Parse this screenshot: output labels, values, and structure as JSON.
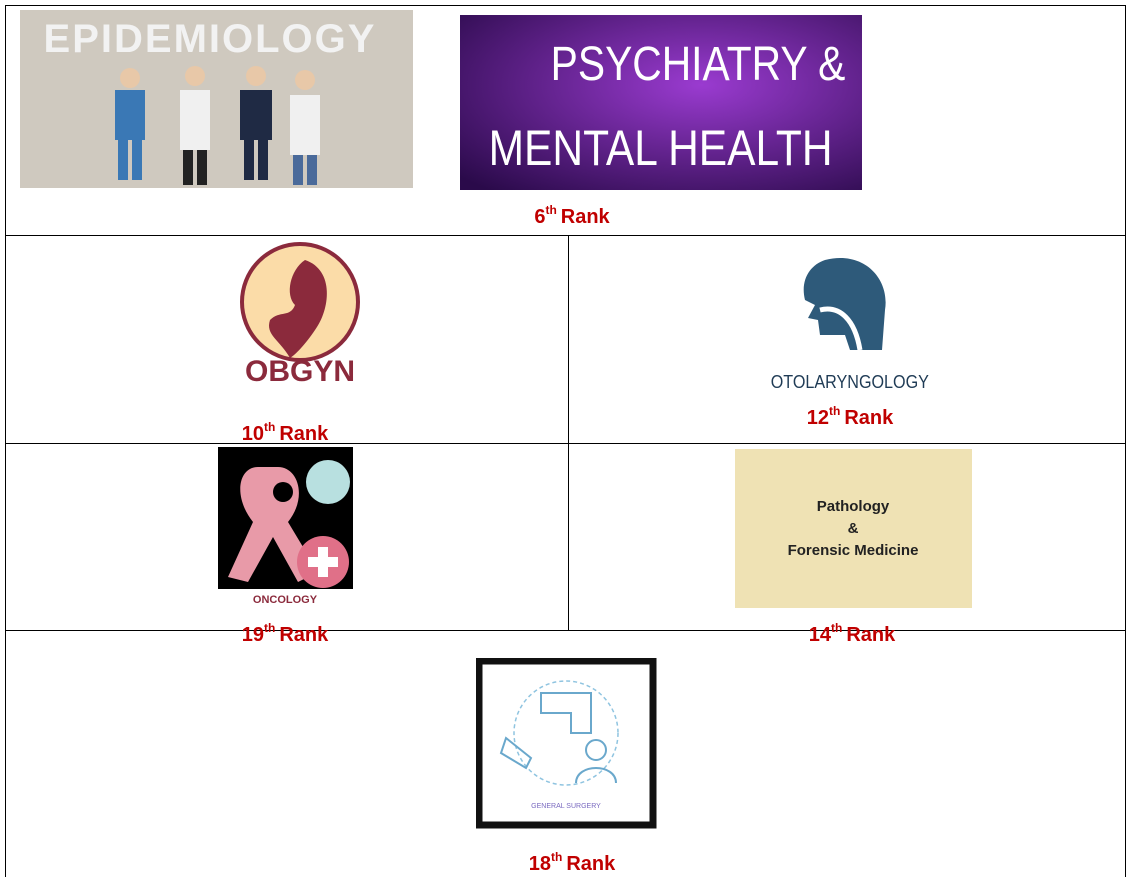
{
  "table": {
    "rows": [
      {
        "cells": [
          {
            "images": [
              {
                "label": "EPIDEMIOLOGY"
              },
              {
                "lines": [
                  "PSYCHIATRY &",
                  "MENTAL HEALTH"
                ]
              }
            ],
            "rank": {
              "number": "6",
              "suffix": "th",
              "word": "Rank"
            }
          }
        ]
      },
      {
        "cells": [
          {
            "images": [
              {
                "label": "OBGYN"
              }
            ],
            "rank": {
              "number": "10",
              "suffix": "th",
              "word": "Rank"
            }
          },
          {
            "images": [
              {
                "label": "OTOLARYNGOLOGY"
              }
            ],
            "rank": {
              "number": "12",
              "suffix": "th",
              "word": "Rank"
            }
          }
        ]
      },
      {
        "cells": [
          {
            "images": [
              {
                "label": "ONCOLOGY"
              }
            ],
            "rank": {
              "number": "19",
              "suffix": "th",
              "word": "Rank"
            }
          },
          {
            "images": [
              {
                "lines": [
                  "Pathology",
                  "&",
                  "Forensic Medicine"
                ]
              }
            ],
            "rank": {
              "number": "14",
              "suffix": "th",
              "word": "Rank"
            }
          }
        ]
      },
      {
        "cells": [
          {
            "images": [
              {
                "label": "GENERAL SURGERY"
              }
            ],
            "rank": {
              "number": "18",
              "suffix": "th",
              "word": "Rank"
            }
          }
        ]
      }
    ]
  }
}
